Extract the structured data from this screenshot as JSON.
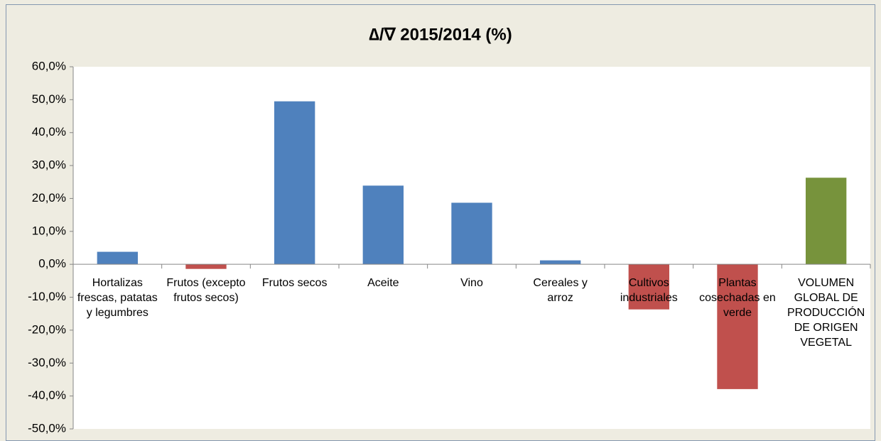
{
  "chart_data": {
    "type": "bar",
    "title": "∆/∇ 2015/2014 (%)",
    "categories": [
      "Hortalizas frescas, patatas y legumbres",
      "Frutos (excepto frutos secos)",
      "Frutos secos",
      "Aceite",
      "Vino",
      "Cereales y arroz",
      "Cultivos industriales",
      "Plantas cosechadas en verde",
      "VOLUMEN GLOBAL DE PRODUCCIÓN DE ORIGEN VEGETAL"
    ],
    "values": [
      3.8,
      -1.4,
      49.5,
      23.9,
      18.7,
      1.2,
      -13.7,
      -37.9,
      26.3
    ],
    "colors": [
      "#4f81bd",
      "#c0504d",
      "#4f81bd",
      "#4f81bd",
      "#4f81bd",
      "#4f81bd",
      "#c0504d",
      "#c0504d",
      "#77933c"
    ],
    "ylim": [
      -50,
      60
    ],
    "yticks": [
      {
        "value": -50,
        "label": "-50,0%"
      },
      {
        "value": -40,
        "label": "-40,0%"
      },
      {
        "value": -30,
        "label": "-30,0%"
      },
      {
        "value": -20,
        "label": "-20,0%"
      },
      {
        "value": -10,
        "label": "-10,0%"
      },
      {
        "value": 0,
        "label": "0,0%"
      },
      {
        "value": 10,
        "label": "10,0%"
      },
      {
        "value": 20,
        "label": "20,0%"
      },
      {
        "value": 30,
        "label": "30,0%"
      },
      {
        "value": 40,
        "label": "40,0%"
      },
      {
        "value": 50,
        "label": "50,0%"
      },
      {
        "value": 60,
        "label": "60,0%"
      }
    ],
    "grid": false
  }
}
